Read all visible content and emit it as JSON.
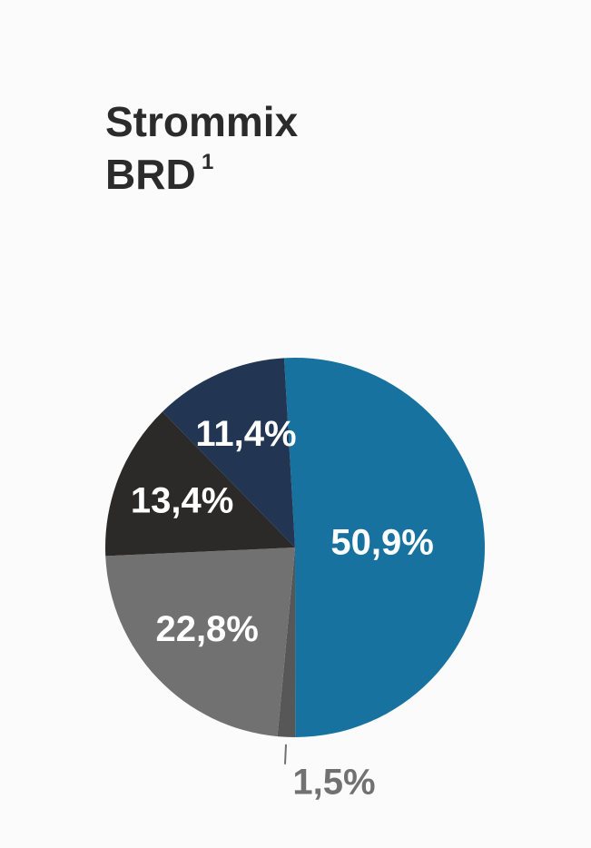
{
  "chart_data": {
    "type": "pie",
    "title_lines": [
      "Strommix",
      "BRD"
    ],
    "title_superscript": "1",
    "categories": [
      null,
      null,
      null,
      null,
      null
    ],
    "values": [
      50.9,
      1.5,
      22.8,
      13.4,
      11.4
    ],
    "value_labels": [
      "50,9%",
      "1,5%",
      "22,8%",
      "13,4%",
      "11,4%"
    ],
    "colors": [
      "#17729f",
      "#575757",
      "#717171",
      "#2b2a29",
      "#223553"
    ]
  }
}
